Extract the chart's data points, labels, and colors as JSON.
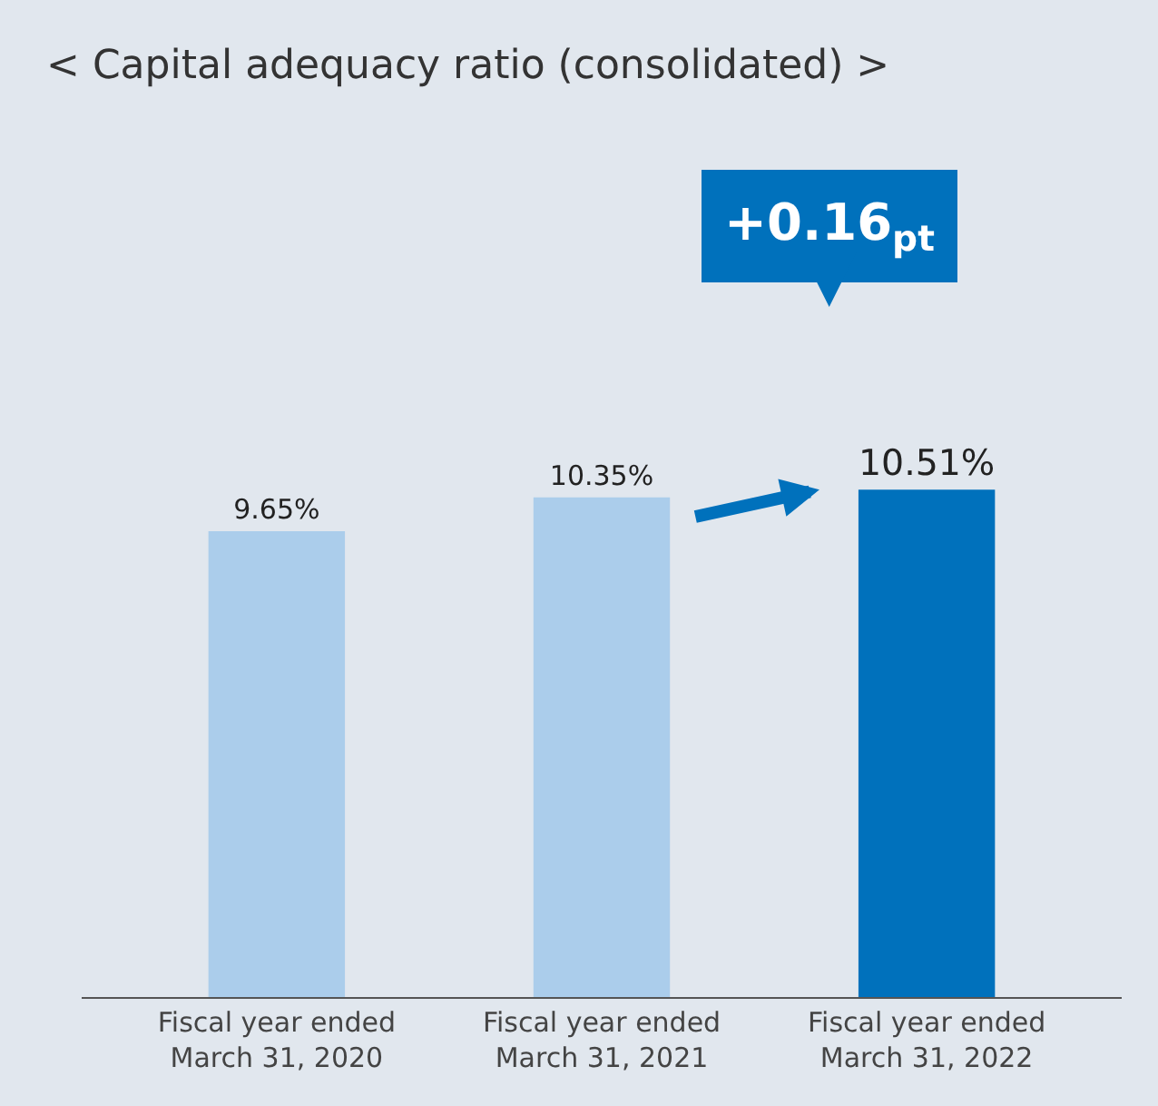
{
  "chart_data": {
    "type": "bar",
    "title": "< Capital adequacy ratio (consolidated) >",
    "categories": [
      "Fiscal year ended\nMarch 31, 2020",
      "Fiscal year ended\nMarch 31, 2021",
      "Fiscal year ended\nMarch 31, 2022"
    ],
    "values": [
      9.65,
      10.35,
      10.51
    ],
    "colors": [
      "#abcdeb",
      "#abcdeb",
      "#0071bc"
    ],
    "value_labels": [
      "9.65%",
      "10.35%",
      "10.51%"
    ],
    "annotations": [
      "+0.16$_{pt}$"
    ],
    "grid": false,
    "legend": false
  }
}
